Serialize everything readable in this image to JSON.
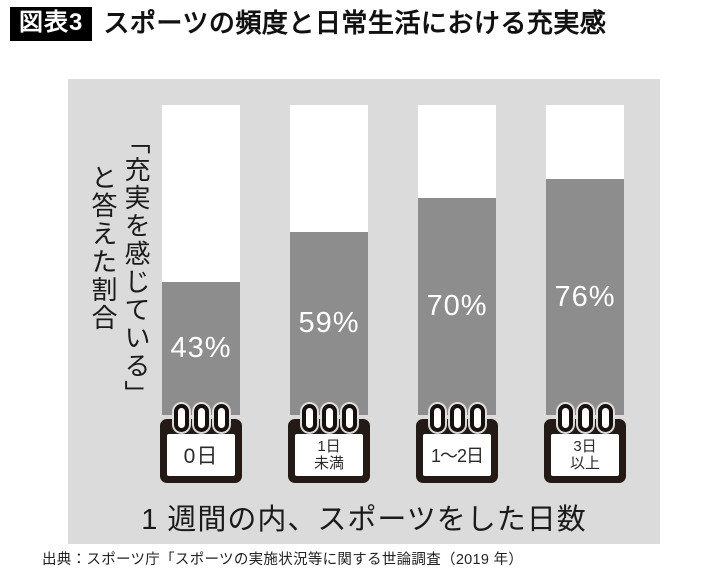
{
  "header": {
    "badge": "図表3",
    "title": "スポーツの頻度と日常生活における充実感"
  },
  "chart_data": {
    "type": "bar",
    "title": "スポーツの頻度と日常生活における充実感",
    "categories": [
      "0日",
      "1日未満",
      "1〜2日",
      "3日以上"
    ],
    "values": [
      43,
      59,
      70,
      76
    ],
    "value_labels": [
      "43%",
      "59%",
      "70%",
      "76%"
    ],
    "unit": "%",
    "ylabel": "「充実を感じている」と答えた割合",
    "xlabel": "1 週間の内、スポーツをした日数",
    "ylim": [
      0,
      100
    ],
    "grid": false,
    "legend": "none",
    "colors": {
      "panel_background": "#dbdbdb",
      "bar_track": "#ffffff",
      "bar_fill": "#8d8d8d",
      "calendar_body": "#241a15",
      "value_label_text": "#ffffff"
    }
  },
  "bars": [
    {
      "pct": 43,
      "label": "43%",
      "category": "0日"
    },
    {
      "pct": 59,
      "label": "59%",
      "category": "1日\n未満"
    },
    {
      "pct": 70,
      "label": "70%",
      "category": "1〜2日"
    },
    {
      "pct": 76,
      "label": "76%",
      "category": "3日\n以上"
    }
  ],
  "axis": {
    "y_label_col1": "「充実を感じている」",
    "y_label_col2": "と答えた割合",
    "x_label": "1 週間の内、スポーツをした日数"
  },
  "source": "出典：スポーツ庁「スポーツの実施状況等に関する世論調査（2019 年）"
}
